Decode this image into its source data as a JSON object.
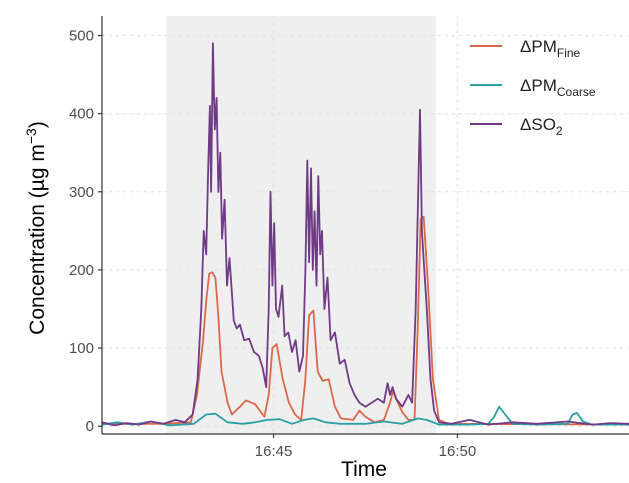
{
  "chart_data": {
    "type": "line",
    "xlabel": "Time",
    "ylabel": "Concentration (µg m⁻³)",
    "ylabel_parts": {
      "main": "Concentration (",
      "unit": "µg m",
      "exp": "−3",
      "close": ")"
    },
    "xlim": [
      "16:40:20",
      "16:54:40"
    ],
    "ylim": [
      -10,
      525
    ],
    "x_ticks": [
      "16:45",
      "16:50"
    ],
    "y_ticks": [
      0,
      100,
      200,
      300,
      400,
      500
    ],
    "grid": true,
    "legend_position": "top-right",
    "shaded_region": {
      "start": "16:42:05",
      "end": "16:49:25",
      "color": "#efefef"
    },
    "series": [
      {
        "name": "ΔPM_Fine",
        "label_main": "ΔPM",
        "label_sub": "Fine",
        "color": "#d9694a",
        "points": [
          [
            "16:40:20",
            3
          ],
          [
            "16:42:00",
            3
          ],
          [
            "16:42:45",
            5
          ],
          [
            "16:42:55",
            40
          ],
          [
            "16:43:05",
            110
          ],
          [
            "16:43:10",
            160
          ],
          [
            "16:43:15",
            195
          ],
          [
            "16:43:20",
            197
          ],
          [
            "16:43:25",
            190
          ],
          [
            "16:43:30",
            140
          ],
          [
            "16:43:35",
            70
          ],
          [
            "16:43:45",
            30
          ],
          [
            "16:43:52",
            15
          ],
          [
            "16:44:05",
            25
          ],
          [
            "16:44:15",
            33
          ],
          [
            "16:44:30",
            28
          ],
          [
            "16:44:45",
            12
          ],
          [
            "16:44:52",
            40
          ],
          [
            "16:44:58",
            100
          ],
          [
            "16:45:05",
            105
          ],
          [
            "16:45:15",
            60
          ],
          [
            "16:45:25",
            30
          ],
          [
            "16:45:35",
            15
          ],
          [
            "16:45:45",
            8
          ],
          [
            "16:45:52",
            60
          ],
          [
            "16:45:58",
            142
          ],
          [
            "16:46:05",
            148
          ],
          [
            "16:46:12",
            70
          ],
          [
            "16:46:20",
            58
          ],
          [
            "16:46:30",
            60
          ],
          [
            "16:46:40",
            25
          ],
          [
            "16:46:50",
            10
          ],
          [
            "16:47:10",
            8
          ],
          [
            "16:47:20",
            20
          ],
          [
            "16:47:30",
            12
          ],
          [
            "16:47:45",
            5
          ],
          [
            "16:48:00",
            8
          ],
          [
            "16:48:10",
            30
          ],
          [
            "16:48:15",
            45
          ],
          [
            "16:48:20",
            35
          ],
          [
            "16:48:30",
            18
          ],
          [
            "16:48:40",
            8
          ],
          [
            "16:48:50",
            8
          ],
          [
            "16:48:55",
            120
          ],
          [
            "16:49:00",
            265
          ],
          [
            "16:49:05",
            268
          ],
          [
            "16:49:12",
            180
          ],
          [
            "16:49:20",
            60
          ],
          [
            "16:49:30",
            8
          ],
          [
            "16:49:45",
            3
          ],
          [
            "16:54:40",
            2
          ]
        ]
      },
      {
        "name": "ΔPM_Coarse",
        "label_main": "ΔPM",
        "label_sub": "Coarse",
        "color": "#2aa0a4",
        "points": [
          [
            "16:40:20",
            2
          ],
          [
            "16:40:45",
            5
          ],
          [
            "16:41:10",
            2
          ],
          [
            "16:41:40",
            6
          ],
          [
            "16:42:10",
            1
          ],
          [
            "16:42:50",
            3
          ],
          [
            "16:43:10",
            15
          ],
          [
            "16:43:25",
            16
          ],
          [
            "16:43:45",
            5
          ],
          [
            "16:44:10",
            3
          ],
          [
            "16:44:30",
            5
          ],
          [
            "16:44:50",
            8
          ],
          [
            "16:45:10",
            9
          ],
          [
            "16:45:30",
            3
          ],
          [
            "16:45:50",
            8
          ],
          [
            "16:46:05",
            10
          ],
          [
            "16:46:25",
            5
          ],
          [
            "16:46:50",
            3
          ],
          [
            "16:47:30",
            3
          ],
          [
            "16:48:00",
            6
          ],
          [
            "16:48:30",
            3
          ],
          [
            "16:48:55",
            10
          ],
          [
            "16:49:10",
            8
          ],
          [
            "16:49:30",
            2
          ],
          [
            "16:50:20",
            2
          ],
          [
            "16:50:50",
            3
          ],
          [
            "16:51:00",
            12
          ],
          [
            "16:51:08",
            25
          ],
          [
            "16:51:18",
            15
          ],
          [
            "16:51:30",
            3
          ],
          [
            "16:52:10",
            2
          ],
          [
            "16:53:00",
            3
          ],
          [
            "16:53:08",
            15
          ],
          [
            "16:53:15",
            17
          ],
          [
            "16:53:25",
            6
          ],
          [
            "16:53:40",
            2
          ],
          [
            "16:54:40",
            2
          ]
        ]
      },
      {
        "name": "ΔSO_2",
        "label_main": "ΔSO",
        "label_sub": "2",
        "color": "#6f3a86",
        "points": [
          [
            "16:40:20",
            5
          ],
          [
            "16:40:40",
            1
          ],
          [
            "16:41:00",
            4
          ],
          [
            "16:41:20",
            2
          ],
          [
            "16:41:40",
            6
          ],
          [
            "16:42:00",
            3
          ],
          [
            "16:42:20",
            8
          ],
          [
            "16:42:35",
            5
          ],
          [
            "16:42:48",
            15
          ],
          [
            "16:42:56",
            60
          ],
          [
            "16:43:02",
            150
          ],
          [
            "16:43:06",
            250
          ],
          [
            "16:43:10",
            220
          ],
          [
            "16:43:13",
            320
          ],
          [
            "16:43:16",
            410
          ],
          [
            "16:43:18",
            300
          ],
          [
            "16:43:21",
            490
          ],
          [
            "16:43:24",
            380
          ],
          [
            "16:43:27",
            420
          ],
          [
            "16:43:30",
            300
          ],
          [
            "16:43:33",
            350
          ],
          [
            "16:43:36",
            240
          ],
          [
            "16:43:40",
            290
          ],
          [
            "16:43:44",
            180
          ],
          [
            "16:43:48",
            215
          ],
          [
            "16:43:55",
            135
          ],
          [
            "16:44:00",
            125
          ],
          [
            "16:44:05",
            130
          ],
          [
            "16:44:12",
            110
          ],
          [
            "16:44:20",
            112
          ],
          [
            "16:44:28",
            95
          ],
          [
            "16:44:36",
            90
          ],
          [
            "16:44:42",
            75
          ],
          [
            "16:44:48",
            50
          ],
          [
            "16:44:52",
            150
          ],
          [
            "16:44:55",
            300
          ],
          [
            "16:44:58",
            180
          ],
          [
            "16:45:01",
            260
          ],
          [
            "16:45:04",
            150
          ],
          [
            "16:45:08",
            140
          ],
          [
            "16:45:14",
            180
          ],
          [
            "16:45:18",
            115
          ],
          [
            "16:45:24",
            120
          ],
          [
            "16:45:30",
            95
          ],
          [
            "16:45:36",
            110
          ],
          [
            "16:45:42",
            70
          ],
          [
            "16:45:48",
            90
          ],
          [
            "16:45:52",
            200
          ],
          [
            "16:45:55",
            340
          ],
          [
            "16:45:58",
            210
          ],
          [
            "16:46:01",
            330
          ],
          [
            "16:46:04",
            200
          ],
          [
            "16:46:07",
            275
          ],
          [
            "16:46:10",
            180
          ],
          [
            "16:46:13",
            320
          ],
          [
            "16:46:16",
            220
          ],
          [
            "16:46:19",
            250
          ],
          [
            "16:46:23",
            150
          ],
          [
            "16:46:28",
            190
          ],
          [
            "16:46:33",
            110
          ],
          [
            "16:46:40",
            120
          ],
          [
            "16:46:48",
            80
          ],
          [
            "16:46:56",
            85
          ],
          [
            "16:47:04",
            55
          ],
          [
            "16:47:12",
            40
          ],
          [
            "16:47:20",
            30
          ],
          [
            "16:47:30",
            25
          ],
          [
            "16:47:40",
            30
          ],
          [
            "16:47:50",
            35
          ],
          [
            "16:48:00",
            30
          ],
          [
            "16:48:06",
            55
          ],
          [
            "16:48:10",
            40
          ],
          [
            "16:48:14",
            50
          ],
          [
            "16:48:20",
            35
          ],
          [
            "16:48:30",
            25
          ],
          [
            "16:48:40",
            40
          ],
          [
            "16:48:46",
            30
          ],
          [
            "16:48:52",
            150
          ],
          [
            "16:48:56",
            300
          ],
          [
            "16:48:59",
            405
          ],
          [
            "16:49:02",
            250
          ],
          [
            "16:49:06",
            200
          ],
          [
            "16:49:10",
            150
          ],
          [
            "16:49:16",
            60
          ],
          [
            "16:49:22",
            20
          ],
          [
            "16:49:30",
            5
          ],
          [
            "16:49:50",
            3
          ],
          [
            "16:50:20",
            8
          ],
          [
            "16:50:50",
            2
          ],
          [
            "16:51:30",
            5
          ],
          [
            "16:52:10",
            3
          ],
          [
            "16:53:00",
            6
          ],
          [
            "16:53:40",
            2
          ],
          [
            "16:54:10",
            4
          ],
          [
            "16:54:40",
            3
          ]
        ]
      }
    ]
  }
}
